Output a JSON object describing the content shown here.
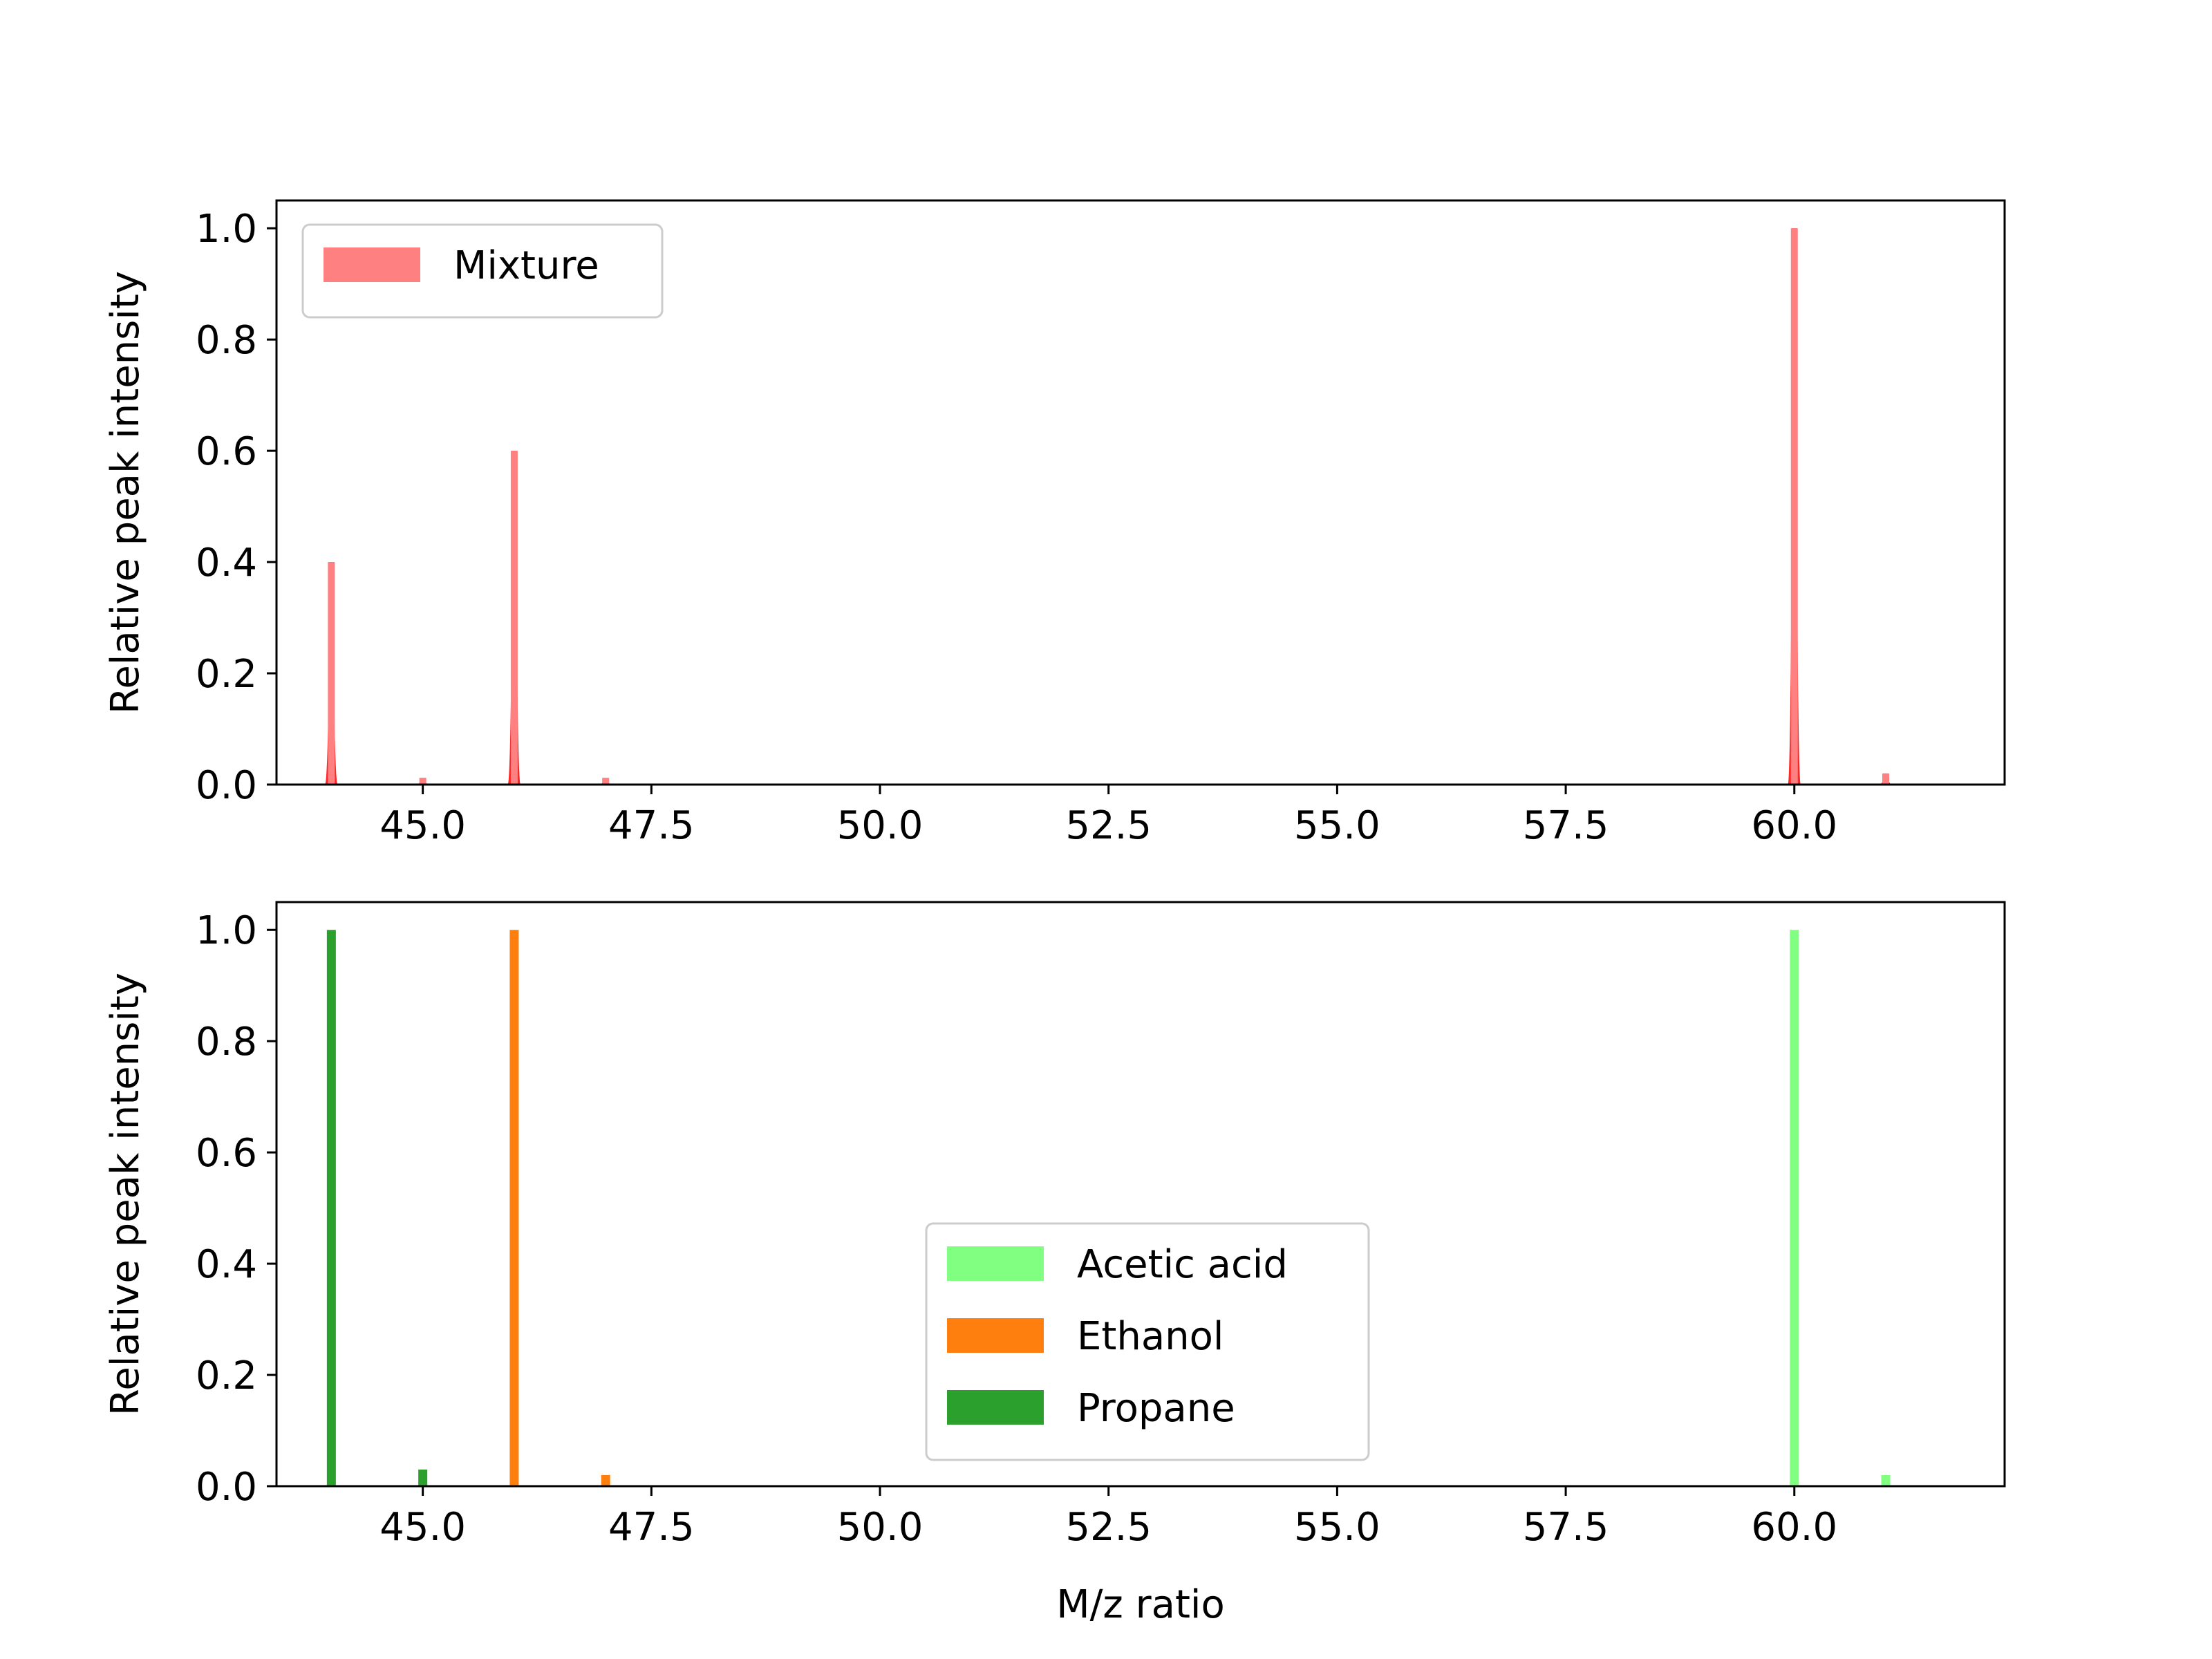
{
  "chart_data": [
    {
      "type": "bar",
      "ylabel": "Relative peak intensity",
      "xlim": [
        43.4,
        62.3
      ],
      "ylim": [
        0,
        1.05
      ],
      "xticks": [
        "45.0",
        "47.5",
        "50.0",
        "52.5",
        "55.0",
        "57.5",
        "60.0"
      ],
      "yticks": [
        "0.0",
        "0.2",
        "0.4",
        "0.6",
        "0.8",
        "1.0"
      ],
      "legend_position": "upper-left",
      "series": [
        {
          "name": "Mixture",
          "color": "#ff0000",
          "legend_color": "#ff8080",
          "peak_width": 0.14,
          "x": [
            44.0,
            45.0,
            46.0,
            47.0,
            60.0,
            61.0
          ],
          "values": [
            0.4,
            0.012,
            0.6,
            0.012,
            1.0,
            0.02
          ]
        }
      ]
    },
    {
      "type": "bar",
      "xlabel": "M/z ratio",
      "ylabel": "Relative peak intensity",
      "xlim": [
        43.4,
        62.3
      ],
      "ylim": [
        0,
        1.05
      ],
      "xticks": [
        "45.0",
        "47.5",
        "50.0",
        "52.5",
        "55.0",
        "57.5",
        "60.0"
      ],
      "yticks": [
        "0.0",
        "0.2",
        "0.4",
        "0.6",
        "0.8",
        "1.0"
      ],
      "legend_position": "lower-center",
      "series": [
        {
          "name": "Acetic acid",
          "color": "#80ff80",
          "x": [
            60.0,
            61.0
          ],
          "values": [
            1.0,
            0.02
          ]
        },
        {
          "name": "Ethanol",
          "color": "#ff7f0e",
          "x": [
            46.0,
            47.0
          ],
          "values": [
            1.0,
            0.02
          ]
        },
        {
          "name": "Propane",
          "color": "#2ca02c",
          "x": [
            44.0,
            45.0
          ],
          "values": [
            1.0,
            0.03
          ]
        }
      ]
    }
  ]
}
